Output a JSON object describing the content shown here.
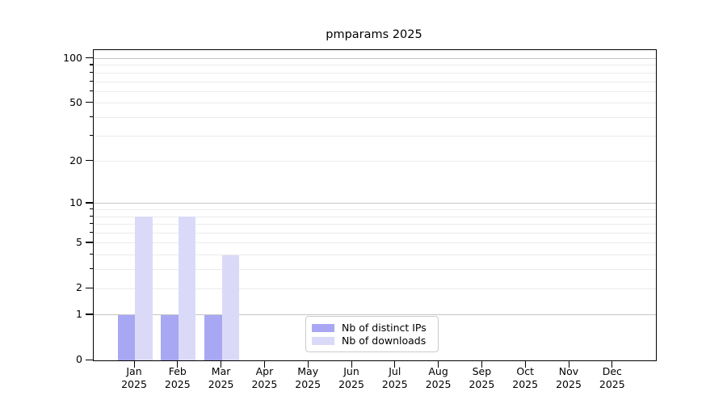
{
  "chart_data": {
    "type": "bar",
    "title": "pmparams 2025",
    "year_label": "2025",
    "months": [
      "Jan",
      "Feb",
      "Mar",
      "Apr",
      "May",
      "Jun",
      "Jul",
      "Aug",
      "Sep",
      "Oct",
      "Nov",
      "Dec"
    ],
    "series": [
      {
        "name": "Nb of distinct IPs",
        "color": "#a7a7f3",
        "values": [
          1,
          1,
          1,
          0,
          0,
          0,
          0,
          0,
          0,
          0,
          0,
          0
        ]
      },
      {
        "name": "Nb of downloads",
        "color": "#dadaf8",
        "values": [
          8,
          8,
          4,
          0,
          0,
          0,
          0,
          0,
          0,
          0,
          0,
          0
        ]
      }
    ],
    "yscale": "log1p",
    "ylim": [
      0,
      114
    ],
    "yticks_labeled": [
      0,
      1,
      2,
      5,
      10,
      20,
      50,
      100
    ],
    "gridlines_major": [
      1,
      10,
      100
    ],
    "gridlines_minor": [
      2,
      3,
      4,
      5,
      6,
      7,
      8,
      9,
      20,
      30,
      40,
      50,
      60,
      70,
      80,
      90
    ],
    "legend_position": "lower center",
    "grid": true
  },
  "colors": {
    "background": "#ffffff",
    "spine": "#000000",
    "text": "#000000",
    "grid_major": "#c6c6c6",
    "grid_minor": "#ebebeb",
    "legend_border": "#cccccc"
  }
}
